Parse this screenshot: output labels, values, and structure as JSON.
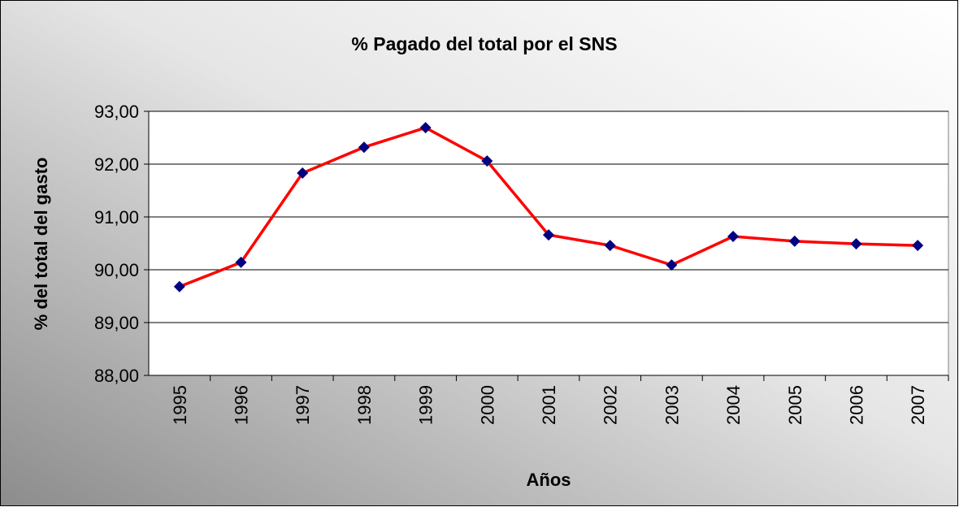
{
  "chart_data": {
    "type": "line",
    "title": "% Pagado del total por el SNS",
    "x_label": "Años",
    "y_label": "% del total del gasto",
    "categories": [
      "1995",
      "1996",
      "1997",
      "1998",
      "1999",
      "2000",
      "2001",
      "2002",
      "2003",
      "2004",
      "2005",
      "2006",
      "2007"
    ],
    "series": [
      {
        "name": "% Pagado del total por el SNS",
        "color": "#ff0000",
        "marker_color": "#000080",
        "values": [
          89.68,
          90.14,
          91.83,
          92.32,
          92.69,
          92.06,
          90.66,
          90.46,
          90.09,
          90.63,
          90.54,
          90.49,
          90.46
        ]
      }
    ],
    "ylim": [
      88,
      93
    ],
    "yticks": [
      {
        "value": 88,
        "label": "88,00"
      },
      {
        "value": 89,
        "label": "89,00"
      },
      {
        "value": 90,
        "label": "90,00"
      },
      {
        "value": 91,
        "label": "91,00"
      },
      {
        "value": 92,
        "label": "92,00"
      },
      {
        "value": 93,
        "label": "93,00"
      }
    ],
    "grid": true,
    "legend": false
  }
}
